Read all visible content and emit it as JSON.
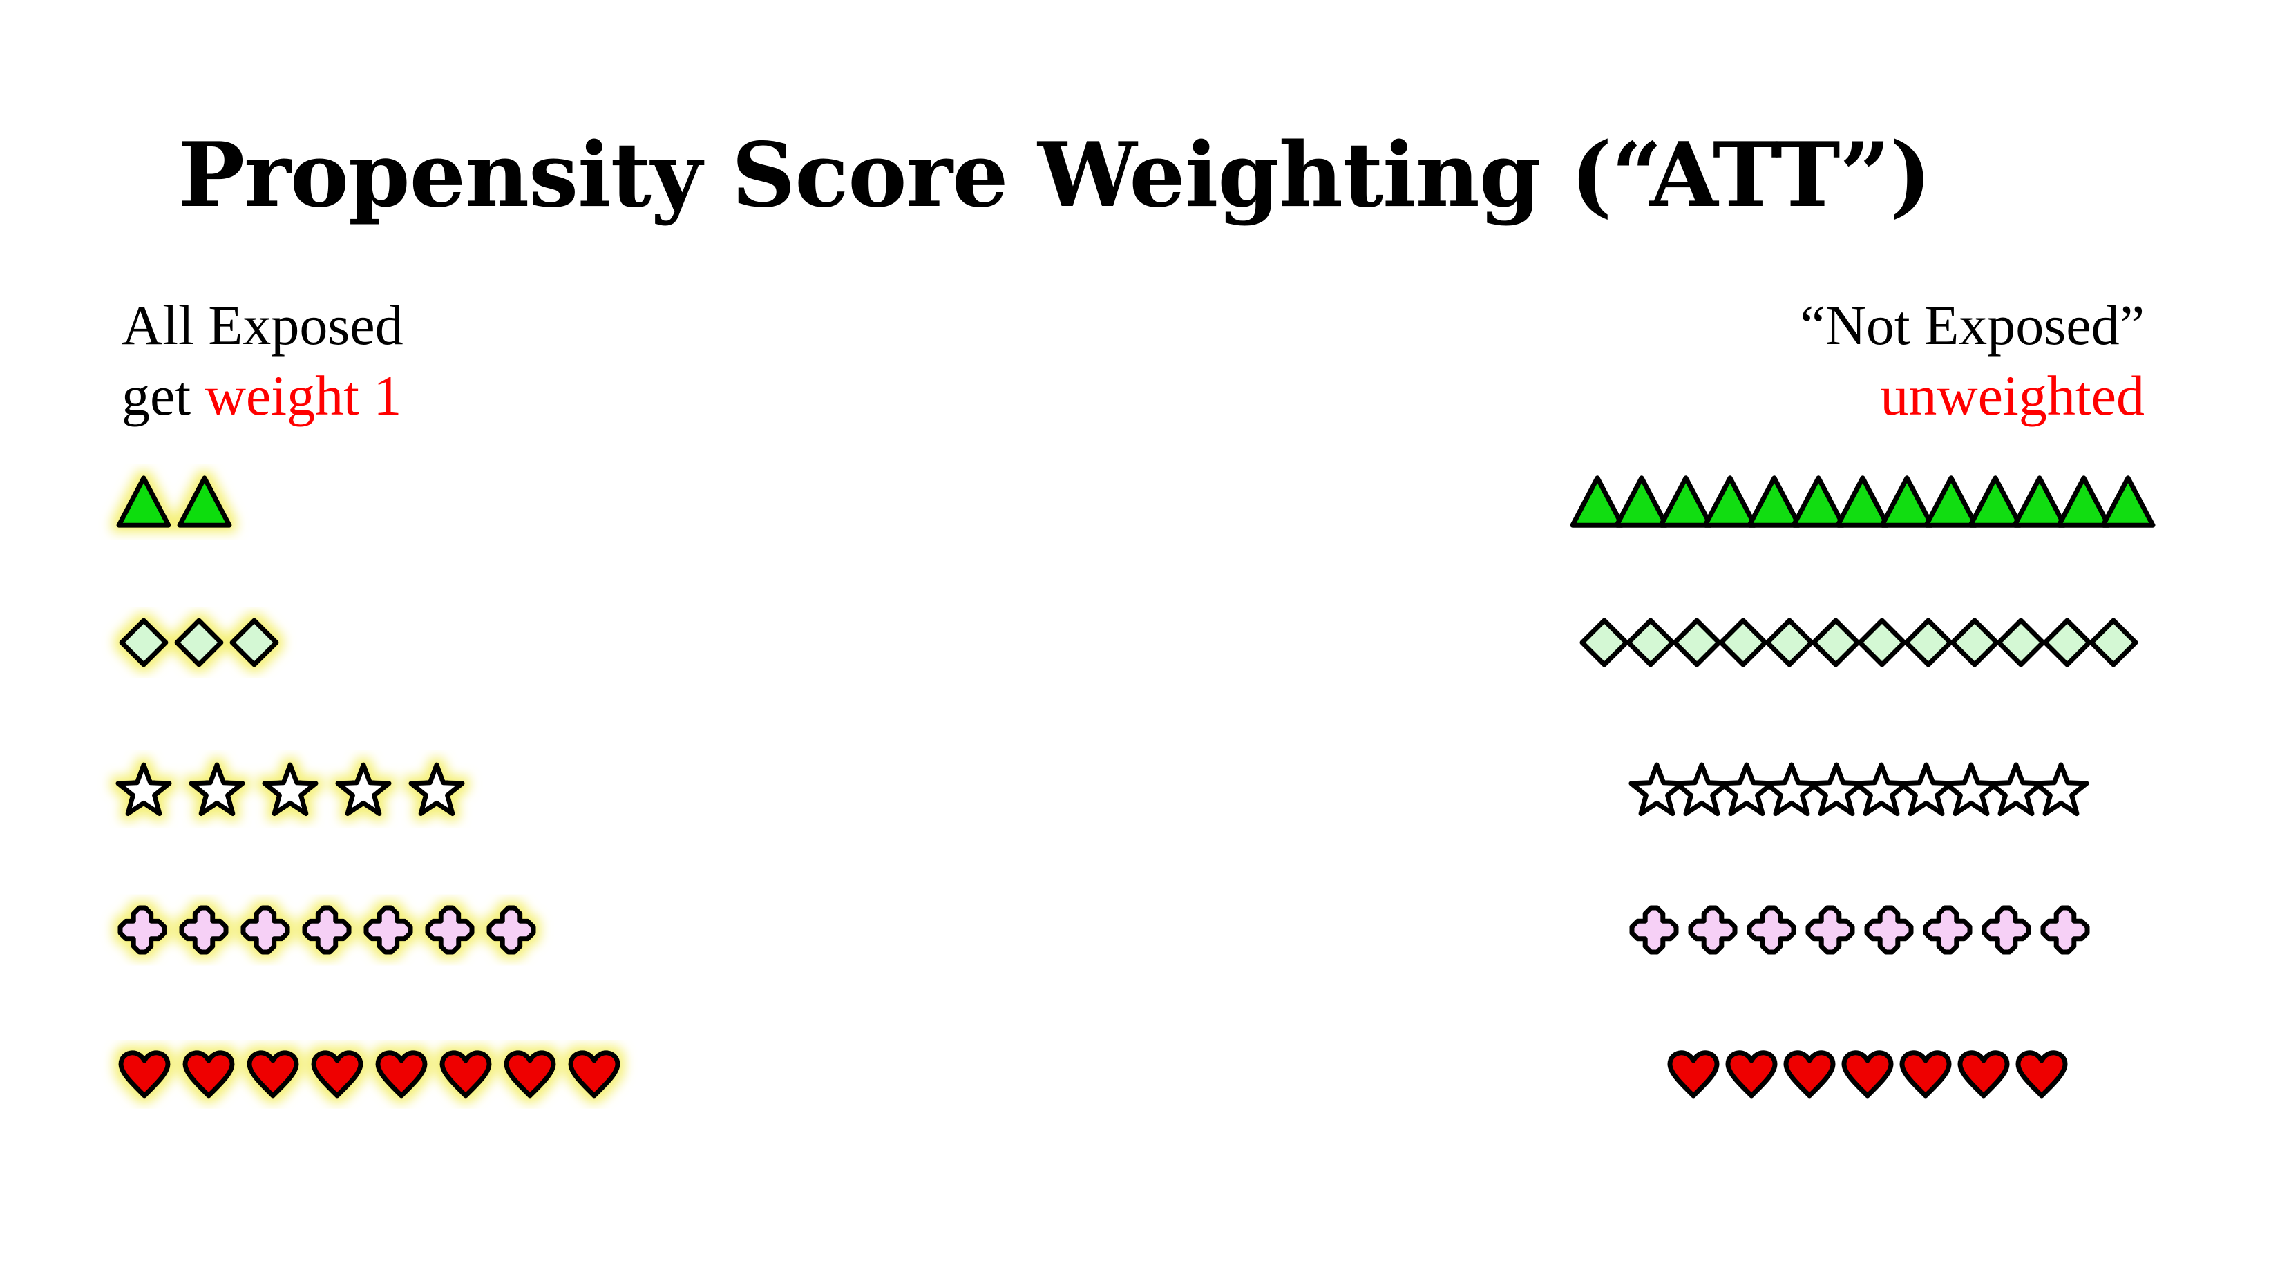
{
  "title": "Propensity Score Weighting (“ATT”)",
  "left_group": {
    "line1": "All Exposed",
    "line2_prefix": "get ",
    "line2_highlight": "weight 1"
  },
  "right_group": {
    "line1": "“Not Exposed”",
    "line2_highlight": "unweighted"
  },
  "colors": {
    "title": "#000000",
    "highlight_text": "#ff0000",
    "glow": "#f5f07a",
    "triangle": "#11dd11",
    "diamond": "#d4f8d4",
    "star": "#ffffff",
    "cross": "#f6d0f6",
    "heart": "#ee0000",
    "outline": "#000000"
  },
  "rows": [
    {
      "shape": "triangle-icon",
      "exposed_count": 2,
      "not_exposed_count": 13
    },
    {
      "shape": "diamond-icon",
      "exposed_count": 3,
      "not_exposed_count": 12
    },
    {
      "shape": "star-icon",
      "exposed_count": 5,
      "not_exposed_count": 10
    },
    {
      "shape": "cross-icon",
      "exposed_count": 7,
      "not_exposed_count": 8
    },
    {
      "shape": "heart-icon",
      "exposed_count": 8,
      "not_exposed_count": 7
    }
  ]
}
